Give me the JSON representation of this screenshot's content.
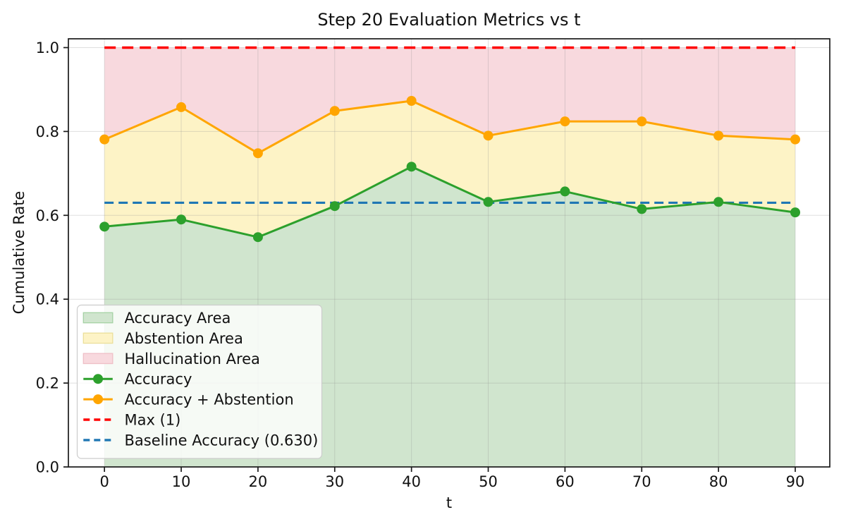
{
  "chart_data": {
    "type": "line",
    "title": "Step 20 Evaluation Metrics vs t",
    "xlabel": "t",
    "ylabel": "Cumulative Rate",
    "x": [
      0,
      10,
      20,
      30,
      40,
      50,
      60,
      70,
      80,
      90
    ],
    "series": [
      {
        "name": "Accuracy",
        "color": "#2ca02c",
        "values": [
          0.573,
          0.59,
          0.548,
          0.622,
          0.716,
          0.632,
          0.657,
          0.615,
          0.632,
          0.607
        ]
      },
      {
        "name": "Accuracy + Abstention",
        "color": "#ffa500",
        "values": [
          0.781,
          0.858,
          0.748,
          0.849,
          0.873,
          0.79,
          0.824,
          0.824,
          0.79,
          0.781
        ]
      }
    ],
    "areas": [
      {
        "name": "Accuracy Area",
        "color": "#d0e5ce",
        "edge": "#a5d2a5"
      },
      {
        "name": "Abstention Area",
        "color": "#fdf3c6",
        "edge": "#ebdf9a"
      },
      {
        "name": "Hallucination Area",
        "color": "#f8d9de",
        "edge": "#efbfc7"
      }
    ],
    "reference_lines": [
      {
        "name": "Max (1)",
        "value": 1.0,
        "color": "#ff0000",
        "style": "dashed"
      },
      {
        "name": "Baseline Accuracy (0.630)",
        "value": 0.63,
        "color": "#1f77b4",
        "style": "dashed"
      }
    ],
    "legend": {
      "position": "lower left",
      "entries": [
        {
          "label": "Accuracy Area",
          "type": "patch",
          "color": "#d0e5ce",
          "edge": "#a5d2a5"
        },
        {
          "label": "Abstention Area",
          "type": "patch",
          "color": "#fdf3c6",
          "edge": "#ebdf9a"
        },
        {
          "label": "Hallucination Area",
          "type": "patch",
          "color": "#f8d9de",
          "edge": "#efbfc7"
        },
        {
          "label": "Accuracy",
          "type": "line",
          "color": "#2ca02c"
        },
        {
          "label": "Accuracy + Abstention",
          "type": "line",
          "color": "#ffa500"
        },
        {
          "label": "Max (1)",
          "type": "dashed",
          "color": "#ff0000"
        },
        {
          "label": "Baseline Accuracy (0.630)",
          "type": "dashed",
          "color": "#1f77b4"
        }
      ]
    },
    "xlim": [
      -4.7,
      94.5
    ],
    "ylim": [
      0,
      1.021
    ],
    "xticks": [
      0,
      10,
      20,
      30,
      40,
      50,
      60,
      70,
      80,
      90
    ],
    "xtick_labels": [
      "0",
      "10",
      "20",
      "30",
      "40",
      "50",
      "60",
      "70",
      "80",
      "90"
    ],
    "yticks": [
      0.0,
      0.2,
      0.4,
      0.6,
      0.8,
      1.0
    ],
    "ytick_labels": [
      "0.0",
      "0.2",
      "0.4",
      "0.6",
      "0.8",
      "1.0"
    ],
    "grid": true
  }
}
